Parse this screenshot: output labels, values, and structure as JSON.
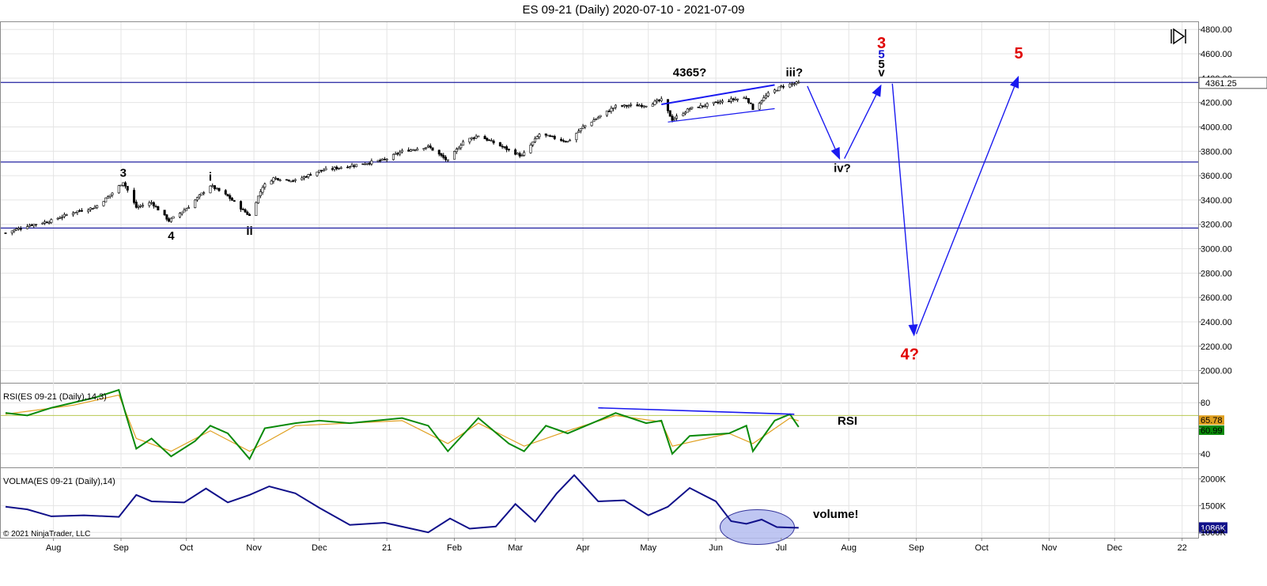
{
  "window": {
    "title": "ES 09-21 (Daily)  2020-07-10 - 2021-07-09",
    "copyright": "© 2021 NinjaTrader, LLC"
  },
  "colors": {
    "candle": "#000000",
    "hline": "#2020a0",
    "arrow": "#1a1af0",
    "rsi": "#0a8a0a",
    "rsi_signal": "#e0a020",
    "rsi_level": "#b8c850",
    "volma": "#10108a",
    "ellipse": "#b4bdf0",
    "label_red": "#e00000",
    "grid": "#e4e4e4"
  },
  "chart_data": [
    {
      "type": "candlestick",
      "name": "main",
      "title": "ES 09-21 (Daily)  2020-07-10 - 2021-07-09",
      "ylim": [
        1900,
        4860
      ],
      "yticks": [
        2000,
        2200,
        2400,
        2600,
        2800,
        3000,
        3200,
        3400,
        3600,
        3800,
        4000,
        4200,
        4400,
        4600,
        4800
      ],
      "ytick_labels": [
        "2000.00",
        "2200.00",
        "2400.00",
        "2600.00",
        "2800.00",
        "3000.00",
        "3200.00",
        "3400.00",
        "3600.00",
        "3800.00",
        "4000.00",
        "4200.00",
        "4400.00",
        "4600.00",
        "4800.00"
      ],
      "x_axis": {
        "labels": [
          "Aug",
          "Sep",
          "Oct",
          "Nov",
          "Dec",
          "21",
          "Feb",
          "Mar",
          "Apr",
          "May",
          "Jun",
          "Jul",
          "Aug",
          "Sep",
          "Oct",
          "Nov",
          "Dec",
          "22"
        ],
        "dates": [
          "2020-08-01",
          "2020-09-01",
          "2020-10-01",
          "2020-11-01",
          "2020-12-01",
          "2021-01-01",
          "2021-02-01",
          "2021-03-01",
          "2021-04-01",
          "2021-05-01",
          "2021-06-01",
          "2021-07-01",
          "2021-08-01",
          "2021-09-01",
          "2021-10-01",
          "2021-11-01",
          "2021-12-01",
          "2022-01-01"
        ]
      },
      "price_path": [
        [
          "2020-07-10",
          3130
        ],
        [
          "2020-07-20",
          3190
        ],
        [
          "2020-07-31",
          3230
        ],
        [
          "2020-08-10",
          3300
        ],
        [
          "2020-08-20",
          3340
        ],
        [
          "2020-08-27",
          3440
        ],
        [
          "2020-09-02",
          3550
        ],
        [
          "2020-09-08",
          3340
        ],
        [
          "2020-09-15",
          3380
        ],
        [
          "2020-09-23",
          3230
        ],
        [
          "2020-10-01",
          3330
        ],
        [
          "2020-10-12",
          3520
        ],
        [
          "2020-10-20",
          3430
        ],
        [
          "2020-10-30",
          3270
        ],
        [
          "2020-11-05",
          3510
        ],
        [
          "2020-11-10",
          3580
        ],
        [
          "2020-11-20",
          3560
        ],
        [
          "2020-12-01",
          3640
        ],
        [
          "2020-12-15",
          3680
        ],
        [
          "2020-12-31",
          3730
        ],
        [
          "2021-01-08",
          3800
        ],
        [
          "2021-01-20",
          3840
        ],
        [
          "2021-01-29",
          3720
        ],
        [
          "2021-02-05",
          3880
        ],
        [
          "2021-02-12",
          3930
        ],
        [
          "2021-02-26",
          3810
        ],
        [
          "2021-03-04",
          3760
        ],
        [
          "2021-03-12",
          3940
        ],
        [
          "2021-03-25",
          3880
        ],
        [
          "2021-04-01",
          4000
        ],
        [
          "2021-04-16",
          4170
        ],
        [
          "2021-04-30",
          4180
        ],
        [
          "2021-05-07",
          4220
        ],
        [
          "2021-05-12",
          4060
        ],
        [
          "2021-05-20",
          4150
        ],
        [
          "2021-06-07",
          4220
        ],
        [
          "2021-06-15",
          4240
        ],
        [
          "2021-06-18",
          4150
        ],
        [
          "2021-06-25",
          4270
        ],
        [
          "2021-07-02",
          4340
        ],
        [
          "2021-07-09",
          4361.25
        ]
      ],
      "horizontal_lines": [
        4365,
        3712,
        3170
      ],
      "last_price_label": "4361.25",
      "trendlines": [
        {
          "from": [
            "2021-05-07",
            4185
          ],
          "to": [
            "2021-06-28",
            4345
          ]
        },
        {
          "from": [
            "2021-05-10",
            4040
          ],
          "to": [
            "2021-06-28",
            4150
          ]
        }
      ],
      "projection_arrows": [
        {
          "from": [
            "2021-07-13",
            4335
          ],
          "to": [
            "2021-07-28",
            3730
          ]
        },
        {
          "from": [
            "2021-07-30",
            3740
          ],
          "to": [
            "2021-08-16",
            4350
          ]
        },
        {
          "from": [
            "2021-08-21",
            4355
          ],
          "to": [
            "2021-08-31",
            2280
          ]
        },
        {
          "from": [
            "2021-09-01",
            2300
          ],
          "to": [
            "2021-10-18",
            4420
          ]
        }
      ],
      "wave_labels": [
        {
          "text": "3",
          "date": "2020-09-02",
          "price": 3590,
          "color": "black"
        },
        {
          "text": "4",
          "date": "2020-09-24",
          "price": 3075,
          "color": "black"
        },
        {
          "text": "i",
          "date": "2020-10-12",
          "price": 3560,
          "color": "black"
        },
        {
          "text": "ii",
          "date": "2020-10-30",
          "price": 3115,
          "color": "black"
        },
        {
          "text": "4365?",
          "date": "2021-05-20",
          "price": 4415,
          "color": "black"
        },
        {
          "text": "iii?",
          "date": "2021-07-07",
          "price": 4415,
          "color": "black"
        },
        {
          "text": "iv?",
          "date": "2021-07-29",
          "price": 3630,
          "color": "black"
        },
        {
          "text": "3",
          "date": "2021-08-16",
          "price": 4645,
          "color": "red"
        },
        {
          "text": "5",
          "date": "2021-08-16",
          "price": 4565,
          "color": "blue"
        },
        {
          "text": "5",
          "date": "2021-08-16",
          "price": 4485,
          "color": "black"
        },
        {
          "text": "v",
          "date": "2021-08-16",
          "price": 4415,
          "color": "black"
        },
        {
          "text": "5",
          "date": "2021-10-18",
          "price": 4560,
          "color": "red"
        },
        {
          "text": "4?",
          "date": "2021-08-29",
          "price": 2090,
          "color": "red"
        }
      ]
    },
    {
      "type": "line",
      "name": "rsi",
      "title": "RSI(ES 09-21 (Daily),14,3)",
      "ylim": [
        30,
        95
      ],
      "yticks": [
        40,
        60,
        80
      ],
      "ytick_labels": [
        "40",
        "",
        "80"
      ],
      "level": 70,
      "series": [
        {
          "name": "RSI",
          "values": [
            [
              "2020-07-10",
              72
            ],
            [
              "2020-07-20",
              70
            ],
            [
              "2020-07-31",
              76
            ],
            [
              "2020-08-10",
              80
            ],
            [
              "2020-08-20",
              84
            ],
            [
              "2020-08-31",
              90
            ],
            [
              "2020-09-03",
              72
            ],
            [
              "2020-09-08",
              44
            ],
            [
              "2020-09-15",
              52
            ],
            [
              "2020-09-24",
              38
            ],
            [
              "2020-10-05",
              50
            ],
            [
              "2020-10-12",
              62
            ],
            [
              "2020-10-20",
              56
            ],
            [
              "2020-10-30",
              36
            ],
            [
              "2020-11-06",
              60
            ],
            [
              "2020-11-20",
              64
            ],
            [
              "2020-12-01",
              66
            ],
            [
              "2020-12-15",
              64
            ],
            [
              "2021-01-08",
              68
            ],
            [
              "2021-01-20",
              62
            ],
            [
              "2021-01-29",
              42
            ],
            [
              "2021-02-12",
              68
            ],
            [
              "2021-02-26",
              48
            ],
            [
              "2021-03-05",
              42
            ],
            [
              "2021-03-15",
              62
            ],
            [
              "2021-03-25",
              56
            ],
            [
              "2021-04-08",
              66
            ],
            [
              "2021-04-16",
              72
            ],
            [
              "2021-04-30",
              64
            ],
            [
              "2021-05-07",
              66
            ],
            [
              "2021-05-12",
              40
            ],
            [
              "2021-05-20",
              54
            ],
            [
              "2021-06-07",
              56
            ],
            [
              "2021-06-15",
              62
            ],
            [
              "2021-06-18",
              42
            ],
            [
              "2021-06-28",
              66
            ],
            [
              "2021-07-05",
              71
            ],
            [
              "2021-07-09",
              60.99
            ]
          ]
        },
        {
          "name": "RSI avg",
          "values": [
            [
              "2020-07-10",
              71
            ],
            [
              "2020-08-10",
              78
            ],
            [
              "2020-08-31",
              86
            ],
            [
              "2020-09-08",
              52
            ],
            [
              "2020-09-24",
              42
            ],
            [
              "2020-10-12",
              58
            ],
            [
              "2020-10-30",
              42
            ],
            [
              "2020-11-20",
              62
            ],
            [
              "2020-12-15",
              64
            ],
            [
              "2021-01-08",
              66
            ],
            [
              "2021-01-29",
              48
            ],
            [
              "2021-02-12",
              64
            ],
            [
              "2021-03-05",
              46
            ],
            [
              "2021-03-25",
              58
            ],
            [
              "2021-04-16",
              70
            ],
            [
              "2021-05-07",
              65
            ],
            [
              "2021-05-12",
              46
            ],
            [
              "2021-06-07",
              56
            ],
            [
              "2021-06-18",
              48
            ],
            [
              "2021-07-05",
              68
            ],
            [
              "2021-07-09",
              65.78
            ]
          ]
        }
      ],
      "last_values": [
        "65.78",
        "60.99"
      ],
      "trendline": {
        "from": [
          "2021-04-08",
          76
        ],
        "to": [
          "2021-07-07",
          71
        ]
      },
      "annotation": "RSI"
    },
    {
      "type": "line",
      "name": "volma",
      "title": "VOLMA(ES 09-21 (Daily),14)",
      "ylim": [
        900,
        2200
      ],
      "yticks": [
        1000,
        1500,
        2000
      ],
      "ytick_labels": [
        "1000K",
        "1500K",
        "2000K"
      ],
      "series": [
        {
          "name": "VOLMA",
          "values": [
            [
              "2020-07-10",
              1480
            ],
            [
              "2020-07-20",
              1430
            ],
            [
              "2020-07-31",
              1300
            ],
            [
              "2020-08-15",
              1320
            ],
            [
              "2020-08-31",
              1290
            ],
            [
              "2020-09-08",
              1700
            ],
            [
              "2020-09-15",
              1580
            ],
            [
              "2020-09-30",
              1560
            ],
            [
              "2020-10-10",
              1820
            ],
            [
              "2020-10-20",
              1560
            ],
            [
              "2020-10-30",
              1700
            ],
            [
              "2020-11-08",
              1860
            ],
            [
              "2020-11-20",
              1730
            ],
            [
              "2020-12-01",
              1460
            ],
            [
              "2020-12-15",
              1140
            ],
            [
              "2020-12-31",
              1180
            ],
            [
              "2021-01-20",
              1000
            ],
            [
              "2021-01-30",
              1260
            ],
            [
              "2021-02-08",
              1070
            ],
            [
              "2021-02-20",
              1110
            ],
            [
              "2021-03-01",
              1530
            ],
            [
              "2021-03-10",
              1200
            ],
            [
              "2021-03-20",
              1730
            ],
            [
              "2021-03-28",
              2070
            ],
            [
              "2021-04-08",
              1580
            ],
            [
              "2021-04-20",
              1600
            ],
            [
              "2021-05-01",
              1320
            ],
            [
              "2021-05-10",
              1480
            ],
            [
              "2021-05-20",
              1830
            ],
            [
              "2021-06-01",
              1580
            ],
            [
              "2021-06-08",
              1210
            ],
            [
              "2021-06-15",
              1160
            ],
            [
              "2021-06-22",
              1240
            ],
            [
              "2021-06-29",
              1100
            ],
            [
              "2021-07-05",
              1090
            ],
            [
              "2021-07-09",
              1086
            ]
          ]
        }
      ],
      "last_value_label": "1086K",
      "annotation": "volume!"
    }
  ]
}
